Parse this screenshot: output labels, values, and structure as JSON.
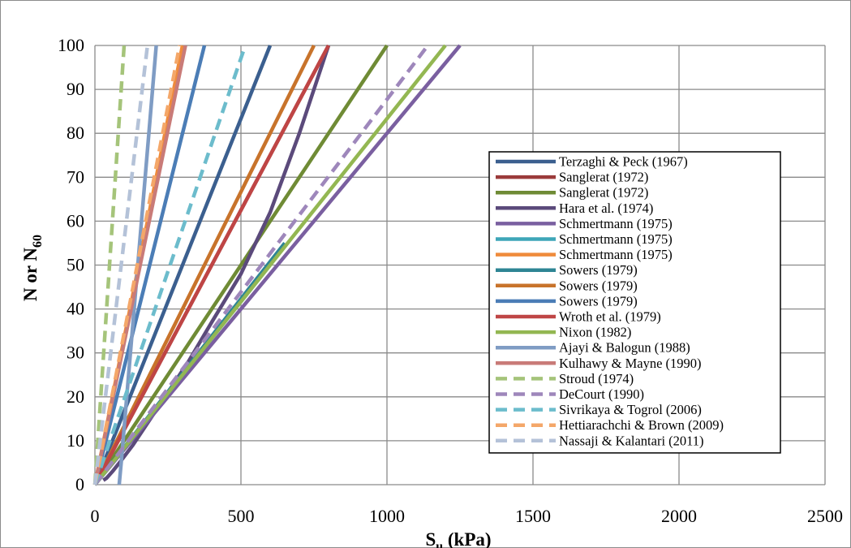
{
  "chart_data": {
    "type": "line",
    "xlabel": {
      "main": "S",
      "sub": "u",
      "rest": " (kPa)"
    },
    "ylabel": {
      "main": "N or N",
      "sub": "60"
    },
    "xlim": [
      0,
      2500
    ],
    "ylim": [
      0,
      100
    ],
    "x_ticks": [
      "0",
      "500",
      "1000",
      "1500",
      "2000",
      "2500"
    ],
    "y_ticks": [
      "0",
      "10",
      "20",
      "30",
      "40",
      "50",
      "60",
      "70",
      "80",
      "90",
      "100"
    ],
    "grid": true,
    "legend_position": "right",
    "series": [
      {
        "name": "Terzaghi & Peck (1967)",
        "color": "#3b5f8f",
        "dash": false,
        "x": [
          0,
          600
        ],
        "y": [
          0,
          100
        ]
      },
      {
        "name": "Sanglerat (1972)",
        "color": "#9b3b3b",
        "dash": false,
        "x": [
          0,
          800
        ],
        "y": [
          0,
          100
        ]
      },
      {
        "name": "Sanglerat (1972)",
        "color": "#6f8b35",
        "dash": false,
        "x": [
          0,
          1000
        ],
        "y": [
          0,
          100
        ]
      },
      {
        "name": "Hara et al. (1974)",
        "color": "#5b4a7b",
        "dash": false,
        "x": [
          29,
          40,
          60,
          90,
          130,
          180,
          240,
          320,
          400,
          500,
          600,
          700,
          800
        ],
        "y": [
          1,
          1.5,
          3,
          5.5,
          9,
          14,
          20,
          28,
          37,
          48,
          62,
          80,
          100
        ]
      },
      {
        "name": "Schmertmann (1975)",
        "color": "#7a5fa0",
        "dash": false,
        "x": [
          0,
          1250
        ],
        "y": [
          0,
          100
        ]
      },
      {
        "name": "Schmertmann (1975)",
        "color": "#3ea6b8",
        "dash": false,
        "x": [
          0,
          600
        ],
        "y": [
          0,
          50
        ]
      },
      {
        "name": "Schmertmann (1975)",
        "color": "#ef8b3c",
        "dash": false,
        "x": [
          0,
          300
        ],
        "y": [
          0,
          100
        ]
      },
      {
        "name": "Sowers (1979)",
        "color": "#2e8594",
        "dash": false,
        "x": [
          0,
          650
        ],
        "y": [
          0,
          55
        ]
      },
      {
        "name": "Sowers (1979)",
        "color": "#c8732b",
        "dash": false,
        "x": [
          0,
          750
        ],
        "y": [
          0,
          100
        ]
      },
      {
        "name": "Sowers (1979)",
        "color": "#4b7db6",
        "dash": false,
        "x": [
          0,
          375
        ],
        "y": [
          0,
          100
        ]
      },
      {
        "name": "Wroth et al. (1979)",
        "color": "#bf4545",
        "dash": false,
        "x": [
          0,
          800
        ],
        "y": [
          0,
          100
        ]
      },
      {
        "name": "Nixon (1982)",
        "color": "#93b752",
        "dash": false,
        "x": [
          0,
          1200
        ],
        "y": [
          0,
          100
        ]
      },
      {
        "name": "Ajayi & Balogun (1988)",
        "color": "#7f9cc4",
        "dash": false,
        "x": [
          83,
          90,
          210
        ],
        "y": [
          0,
          5,
          100
        ]
      },
      {
        "name": "Kulhawy & Mayne (1990)",
        "color": "#c97b78",
        "dash": false,
        "x": [
          0,
          310
        ],
        "y": [
          0,
          100
        ]
      },
      {
        "name": "Stroud (1974)",
        "color": "#a5c47a",
        "dash": true,
        "x": [
          0,
          100
        ],
        "y": [
          0,
          100
        ]
      },
      {
        "name": "DeCourt (1990)",
        "color": "#9e87bb",
        "dash": true,
        "x": [
          0,
          1140
        ],
        "y": [
          0,
          100
        ]
      },
      {
        "name": "Sivrikaya & Togrol (2006)",
        "color": "#6cbccc",
        "dash": true,
        "x": [
          0,
          515
        ],
        "y": [
          0,
          100
        ]
      },
      {
        "name": "Hettiarachchi & Brown (2009)",
        "color": "#f4a769",
        "dash": true,
        "x": [
          0,
          290
        ],
        "y": [
          0,
          100
        ]
      },
      {
        "name": "Nassaji & Kalantari (2011)",
        "color": "#b4c2d8",
        "dash": true,
        "x": [
          0,
          180
        ],
        "y": [
          0,
          100
        ]
      }
    ]
  }
}
